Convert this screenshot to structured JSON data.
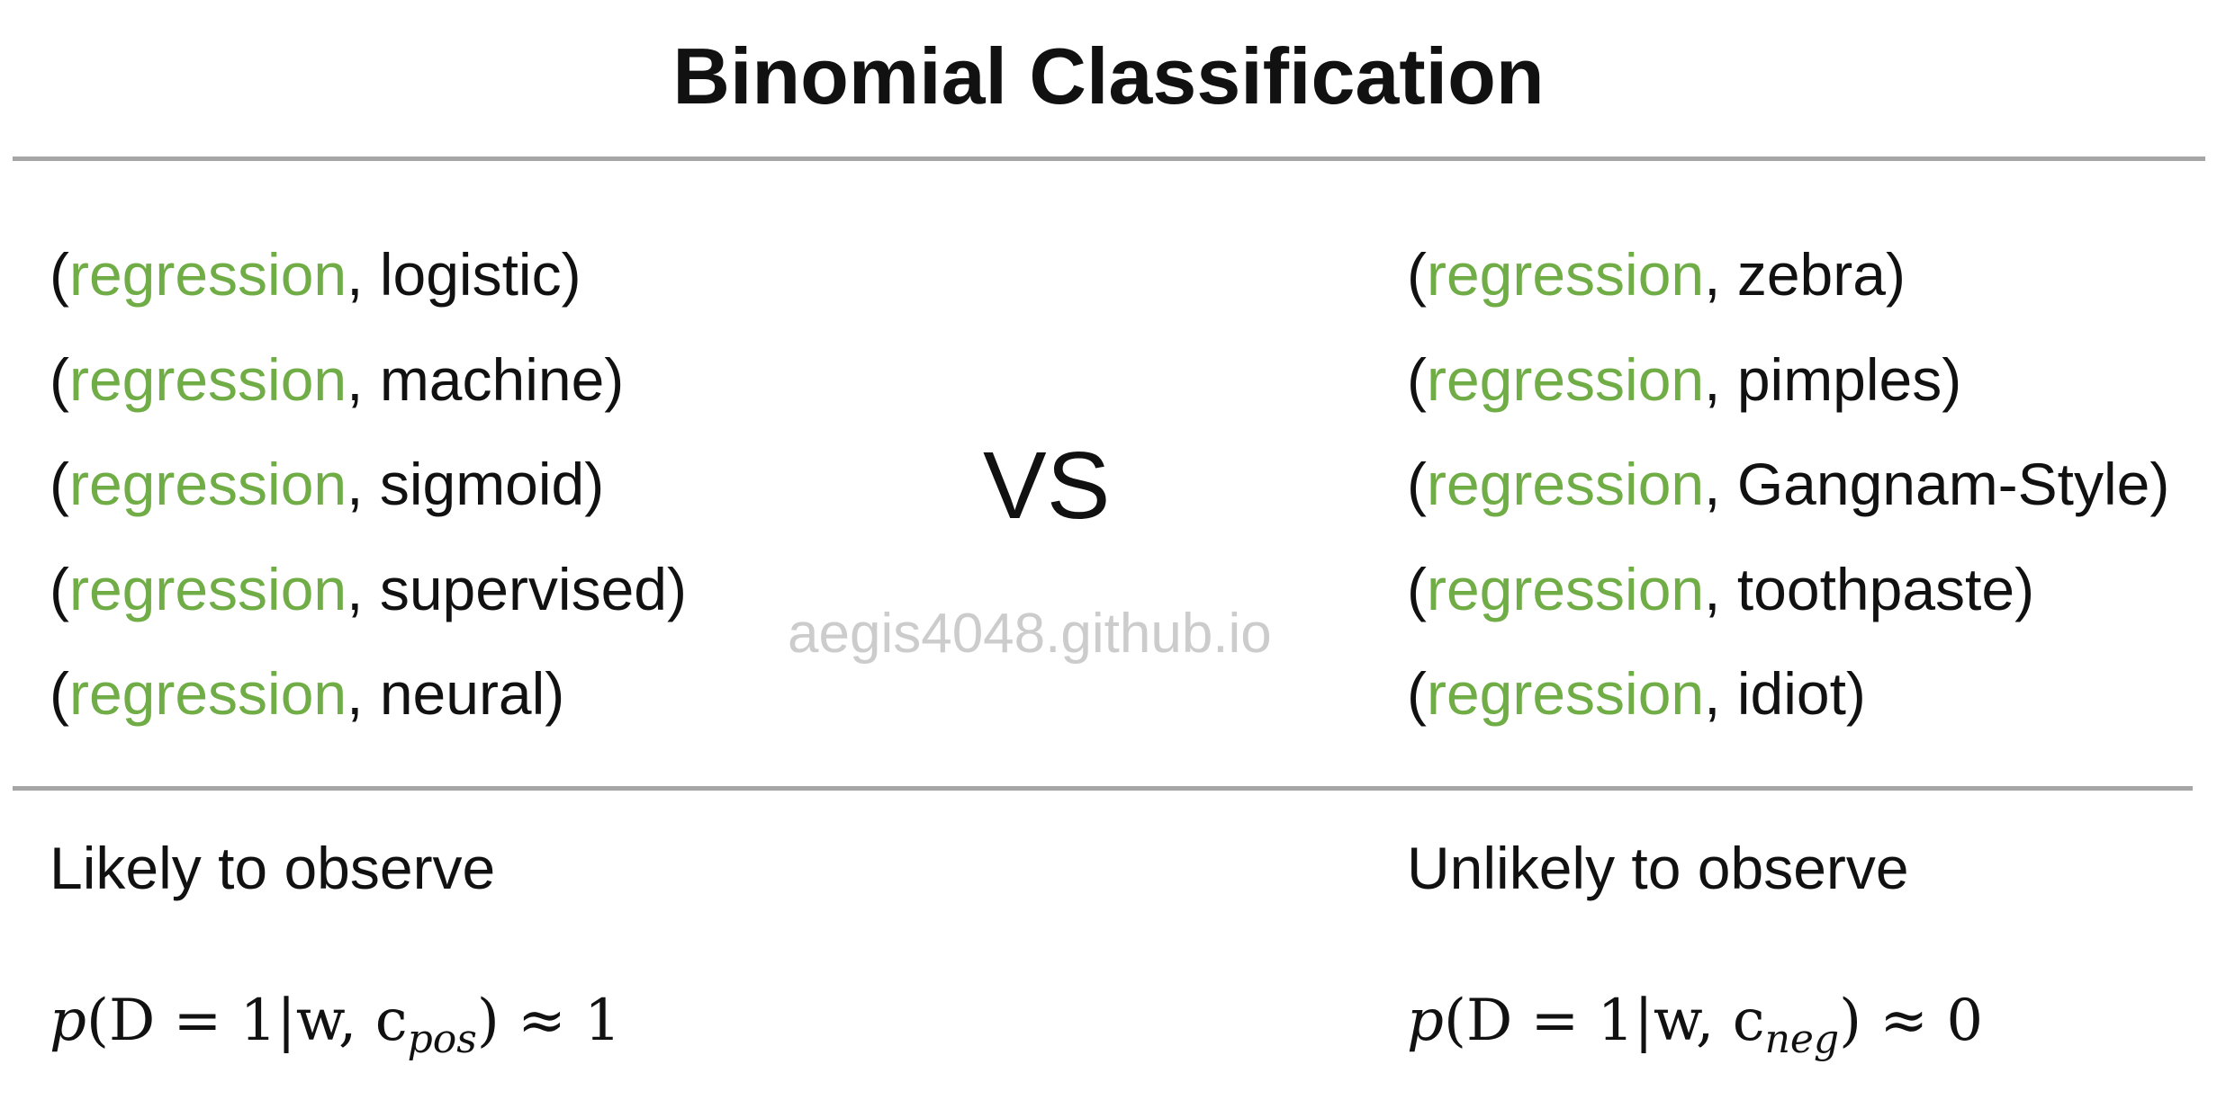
{
  "title": "Binomial Classification",
  "vs_label": "VS",
  "watermark": "aegis4048.github.io",
  "colors": {
    "highlight": "#70ad47",
    "rule": "#a6a6a6",
    "watermark": "#cccccc"
  },
  "positive": {
    "pairs": [
      {
        "open": "(",
        "target": "regression",
        "sep": ", ",
        "context": "logistic",
        "close": ")"
      },
      {
        "open": "(",
        "target": "regression",
        "sep": ", ",
        "context": "machine",
        "close": ")"
      },
      {
        "open": "(",
        "target": "regression",
        "sep": ", ",
        "context": "sigmoid",
        "close": ")"
      },
      {
        "open": "(",
        "target": "regression",
        "sep": ", ",
        "context": "supervised",
        "close": ")"
      },
      {
        "open": "(",
        "target": "regression",
        "sep": ", ",
        "context": "neural",
        "close": ")"
      }
    ],
    "label": "Likely to observe",
    "formula": {
      "p": "p",
      "lhs": "(D = 1|w, c",
      "sub": "pos",
      "rhs": ") ≈ 1"
    }
  },
  "negative": {
    "pairs": [
      {
        "open": "(",
        "target": "regression",
        "sep": ", ",
        "context": "zebra",
        "close": ")"
      },
      {
        "open": "(",
        "target": "regression",
        "sep": ", ",
        "context": "pimples",
        "close": ")"
      },
      {
        "open": "(",
        "target": "regression",
        "sep": ", ",
        "context": "Gangnam-Style",
        "close": ")"
      },
      {
        "open": "(",
        "target": "regression",
        "sep": ", ",
        "context": "toothpaste",
        "close": ")"
      },
      {
        "open": "(",
        "target": "regression",
        "sep": ", ",
        "context": "idiot",
        "close": ")"
      }
    ],
    "label": "Unlikely to observe",
    "formula": {
      "p": "p",
      "lhs": "(D = 1|w, c",
      "sub": "neg",
      "rhs": ") ≈ 0"
    }
  }
}
